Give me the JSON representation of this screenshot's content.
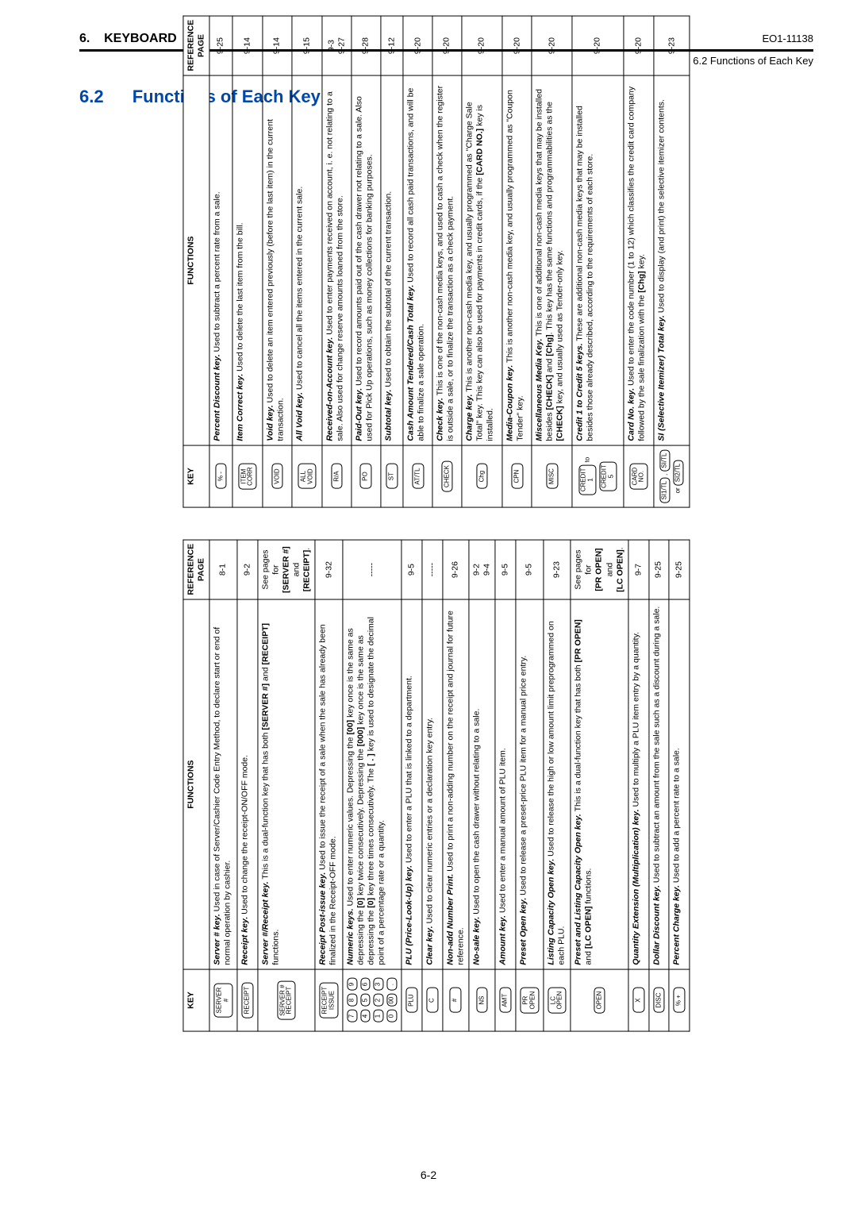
{
  "header": {
    "section": "6.",
    "title": "KEYBOARD",
    "doc_id": "EO1-11138",
    "subheader": "6.2  Functions of Each Key"
  },
  "section": {
    "number": "6.2",
    "title": "Functions of Each Key"
  },
  "page_num": "6-2",
  "cols": {
    "key": "KEY",
    "func": "FUNCTIONS",
    "ref": "REFERENCE PAGE"
  },
  "left": [
    {
      "key_labels": [
        "SERVER\n#"
      ],
      "func": "<span class='bi'>Server # key.</span>  Used in case of Server/Cashier Code Entry Method, to declare start or end of normal operation by cashier.",
      "ref": "8-1"
    },
    {
      "key_labels": [
        "RECEIPT"
      ],
      "func": "<span class='bi'>Receipt key.</span>  Used to change the receipt-ON/OFF mode.",
      "ref": "9-2"
    },
    {
      "key_labels": [
        "SERVER #\nRECEIPT"
      ],
      "func": "<span class='bi'>Server #/Receipt key.</span>  This is a dual-function key that has both <span class='b'>[SERVER #]</span> and <span class='b'>[RECEIPT]</span> functions.",
      "ref": "See pages for <br><span class='b'>[SERVER #]</span><br> and <br><span class='b'>[RECEIPT]</span>."
    },
    {
      "key_labels": [
        "RECEIPT\nISSUE"
      ],
      "func": "<span class='bi'>Receipt Post-issue key.</span>  Used to issue the receipt of a sale when the sale has already been finalized in the Receipt-OFF mode.",
      "ref": "9-32"
    },
    {
      "key_type": "numpad",
      "func": "<span class='bi'>Numeric keys.</span>  Used to enter numeric values. Depressing the <span class='b'>[00]</span> key once is the same as depressing the <span class='b'>[0]</span> key twice consecutively. Depressing the <span class='b'>[000]</span> key once is the same as depressing the <span class='b'>[0]</span> key three times consecutively. The <span class='b'>[ . ]</span> key is used to designate the decimal point of a percentage rate or a quantity.",
      "ref": "-----"
    },
    {
      "key_labels": [
        "PLU"
      ],
      "func": "<span class='bi'>PLU (Price-Look-Up) key.</span>  Used to enter a PLU that is linked to a department.",
      "ref": "9-5"
    },
    {
      "key_labels": [
        "C"
      ],
      "func": "<span class='bi'>Clear key.</span>  Used to clear numeric entries or a declaration key entry.",
      "ref": "-----"
    },
    {
      "key_labels": [
        "#"
      ],
      "func": "<span class='bi'>Non-add Number Print.</span>  Used to print a non-adding number on the receipt and journal for future reference.",
      "ref": "9-26"
    },
    {
      "key_labels": [
        "NS"
      ],
      "func": "<span class='bi'>No-sale key.</span>  Used to open the cash drawer without relating to a sale.",
      "ref": "9-2<br>9-4"
    },
    {
      "key_labels": [
        "AMT"
      ],
      "func": "<span class='bi'>Amount key.</span>  Used to enter a manual amount of PLU item.",
      "ref": "9-5"
    },
    {
      "key_labels": [
        "PR\nOPEN"
      ],
      "func": "<span class='bi'>Preset Open key.</span>  Used to release a preset-price PLU item for a manual price entry.",
      "ref": "9-5"
    },
    {
      "key_labels": [
        "LC\nOPEN"
      ],
      "func": "<span class='bi'>Listing Capacity Open key.</span>  Used to release the high or low amount limit preprogrammed on each PLU.",
      "ref": "9-23"
    },
    {
      "key_labels": [
        "OPEN"
      ],
      "func": "<span class='bi'>Preset and Listing Capacity Open key.</span>  This is a dual-function key that has both <span class='b'>[PR OPEN]</span> and <span class='b'>[LC OPEN]</span> functions.",
      "ref": "See pages for<br><span class='b'>[PR OPEN]</span><br>and<br><span class='b'>[LC OPEN]</span>."
    },
    {
      "key_labels": [
        "X"
      ],
      "func": "<span class='bi'>Quantity Extension (Multiplication) key.</span>  Used to multiply a PLU item entry by a quantity.",
      "ref": "9-7"
    },
    {
      "key_labels": [
        "DISC"
      ],
      "func": "<span class='bi'>Dollar Discount key.</span>  Used to subtract an amount from the sale such as a discount during a sale.",
      "ref": "9-25"
    },
    {
      "key_labels": [
        "% +"
      ],
      "func": "<span class='bi'>Percent Charge key.</span>  Used to add a percent rate to a sale.",
      "ref": "9-25"
    }
  ],
  "right": [
    {
      "key_labels": [
        "% -"
      ],
      "func": "<span class='bi'>Percent Discount key.</span>  Used to subtract a percent rate from a sale.",
      "ref": "9-25"
    },
    {
      "key_labels": [
        "ITEM\nCORR"
      ],
      "func": "<span class='bi'>Item Correct key.</span>  Used to delete the last item from the bill.",
      "ref": "9-14"
    },
    {
      "key_labels": [
        "VOID"
      ],
      "func": "<span class='bi'>Void key.</span>  Used to delete an item entered previously (before the last item) in the current transaction.",
      "ref": "9-14"
    },
    {
      "key_labels": [
        "ALL\nVOID"
      ],
      "func": "<span class='bi'>All Void key.</span>  Used to cancel all the items entered in the current sale.",
      "ref": "9-15"
    },
    {
      "key_labels": [
        "R/A"
      ],
      "func": "<span class='bi'>Received-on-Account key.</span>  Used to enter payments received on account, i.&nbsp;e. not relating to a sale. Also used for change reserve amounts loaned from the store.",
      "ref": "9-3<br>9-27"
    },
    {
      "key_labels": [
        "PO"
      ],
      "func": "<span class='bi'>Paid-Out key.</span>  Used to record amounts paid out of the cash drawer not relating to a sale. Also used for Pick Up operations, such as money collections for banking purposes.",
      "ref": "9-28"
    },
    {
      "key_labels": [
        "ST"
      ],
      "func": "<span class='bi'>Subtotal key.</span>  Used to obtain the subtotal of the current transaction.",
      "ref": "9-12"
    },
    {
      "key_labels": [
        "AT/TL"
      ],
      "func": "<span class='bi'>Cash Amount Tendered/Cash Total key.</span>  Used to record all cash paid transactions, and will be able to finalize a sale operation.",
      "ref": "9-20"
    },
    {
      "key_labels": [
        "CHECK"
      ],
      "func": "<span class='bi'>Check key.</span>  This is one of the non-cash media keys, and used to cash a check when the register is outside a sale, or to finalize the transaction as a check payment.",
      "ref": "9-20"
    },
    {
      "key_labels": [
        "Chg"
      ],
      "func": "<span class='bi'>Charge key.</span>  This is another non-cash media key, and usually programmed as \"Charge Sale Total\" key. This key can also be used for payments in credit cards, if the <span class='b'>[CARD NO.]</span> key is installed.",
      "ref": "9-20"
    },
    {
      "key_labels": [
        "CPN"
      ],
      "func": "<span class='bi'>Media-Coupon key.</span>  This is another non-cash media key, and usually programmed as \"Coupon Tender\" key.",
      "ref": "9-20"
    },
    {
      "key_labels": [
        "MISC"
      ],
      "func": "<span class='bi'>Miscellaneous Media Key.</span>  This is one of additional non-cash media keys that may be installed besides <span class='b'>[CHECK]</span> and <span class='b'>[Chg]</span>. This key has the same functions and programmabilities as the <span class='b'>[CHECK]</span> key, and usually used as Tender-only key.",
      "ref": "9-20"
    },
    {
      "key_type": "credit",
      "func": "<span class='bi'>Credit 1 to Credit 5 keys.</span>  These are additional non-cash media keys that may be installed besides those already described, according to the requirements of each store.",
      "ref": "9-20"
    },
    {
      "key_labels": [
        "CARD\nNO."
      ],
      "func": "<span class='bi'>Card No. key.</span>  Used to enter the code number (1 to 12) which classifies the credit card company followed by the sale finalization with the <span class='b'>[Chg]</span> key.",
      "ref": "9-20"
    },
    {
      "key_type": "sitl",
      "func": "<span class='bi'>SI (Selective Itemizer) Total key.</span>  Used to display (and print) the selective itemizer contents.",
      "ref": "9-23"
    }
  ]
}
